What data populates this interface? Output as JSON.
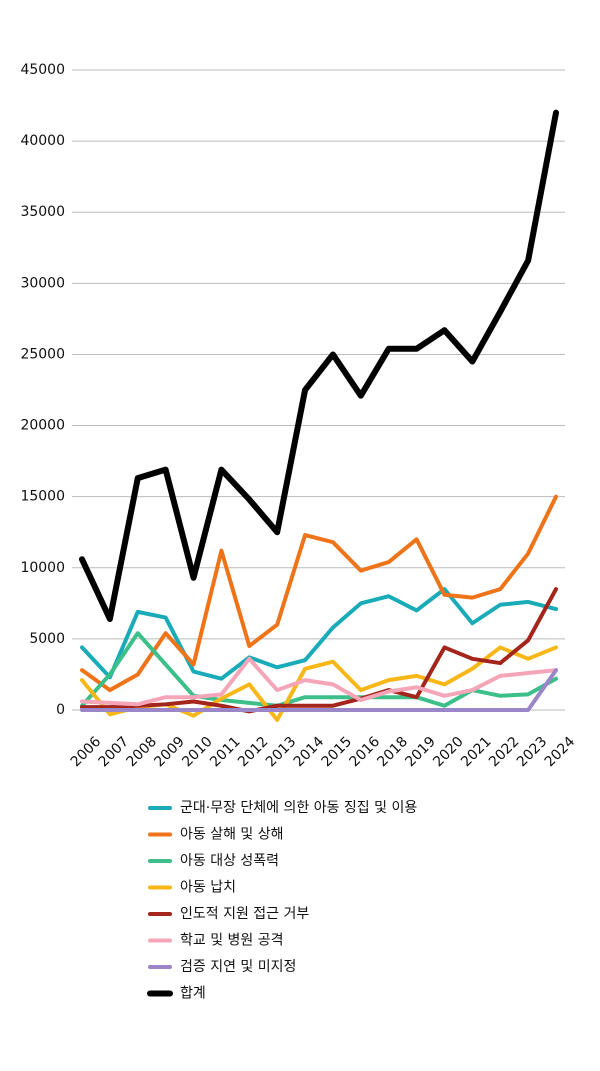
{
  "chart_data": {
    "type": "line",
    "categories": [
      "2006",
      "2007",
      "2008",
      "2009",
      "2010",
      "2011",
      "2012",
      "2013",
      "2014",
      "2015",
      "2016",
      "2018",
      "2019",
      "2020",
      "2021",
      "2022",
      "2023",
      "2024"
    ],
    "series": [
      {
        "name": "군대·무장 단체에 의한 아동 징집 및 이용",
        "color": "#1aabb8",
        "values": [
          4400,
          2300,
          6900,
          6500,
          2700,
          2200,
          3700,
          3000,
          3500,
          5800,
          7500,
          8000,
          7000,
          8500,
          6100,
          7400,
          7600,
          7100
        ]
      },
      {
        "name": "아동 살해 및 상해",
        "color": "#ef7318",
        "values": [
          2800,
          1400,
          2500,
          5400,
          3200,
          11200,
          4500,
          6000,
          12300,
          11800,
          9800,
          10400,
          12000,
          8100,
          7900,
          8500,
          11000,
          15000
        ]
      },
      {
        "name": "아동 대상 성폭력",
        "color": "#3dbf8a",
        "values": [
          300,
          2500,
          5400,
          3200,
          1000,
          700,
          500,
          300,
          900,
          900,
          900,
          900,
          900,
          300,
          1400,
          1000,
          1100,
          2200
        ]
      },
      {
        "name": "아동 납치",
        "color": "#f8b719",
        "values": [
          2100,
          -300,
          200,
          400,
          -400,
          800,
          1800,
          -700,
          2900,
          3400,
          1400,
          2100,
          2400,
          1800,
          2900,
          4400,
          3600,
          4400
        ]
      },
      {
        "name": "인도적 지원 접근 거부",
        "color": "#a3251c",
        "values": [
          200,
          200,
          300,
          400,
          600,
          300,
          -100,
          300,
          300,
          300,
          800,
          1400,
          900,
          4400,
          3600,
          3300,
          4900,
          8500
        ]
      },
      {
        "name": "학교 및 병원 공격",
        "color": "#f4a6b8",
        "values": [
          600,
          500,
          400,
          900,
          900,
          1100,
          3600,
          1400,
          2100,
          1800,
          700,
          1300,
          1600,
          1000,
          1400,
          2400,
          2600,
          2800
        ]
      },
      {
        "name": "검증 지연 및 미지정",
        "color": "#9b86c7",
        "values": [
          0,
          0,
          0,
          0,
          0,
          0,
          0,
          0,
          0,
          0,
          0,
          0,
          0,
          0,
          0,
          0,
          0,
          2800
        ]
      },
      {
        "name": "합계",
        "color": "#000000",
        "values": [
          10600,
          6400,
          16300,
          16900,
          9300,
          16900,
          14800,
          12500,
          22500,
          25000,
          22100,
          25400,
          25400,
          26700,
          24500,
          28000,
          31600,
          42000
        ]
      }
    ],
    "ylim": [
      0,
      45000
    ],
    "yticks": [
      0,
      5000,
      10000,
      15000,
      20000,
      25000,
      30000,
      35000,
      40000,
      45000
    ],
    "grid": true
  }
}
